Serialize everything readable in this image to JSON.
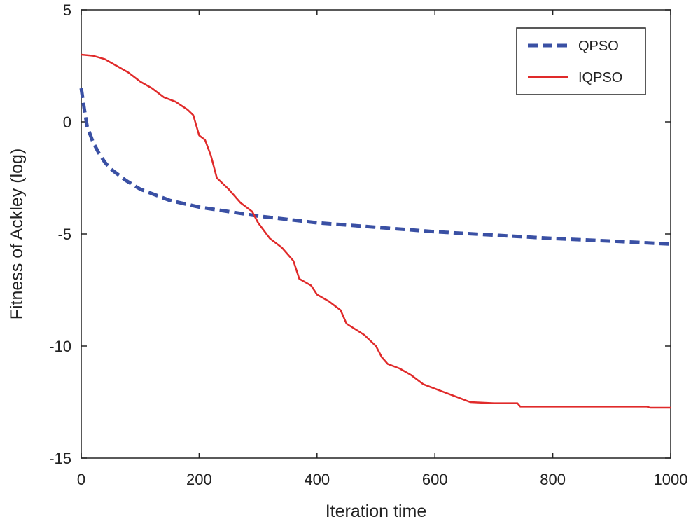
{
  "chart_data": {
    "type": "line",
    "title": "",
    "xlabel": "Iteration time",
    "ylabel": "Fitness of Ackley (log)",
    "xlim": [
      0,
      1000
    ],
    "ylim": [
      -15,
      5
    ],
    "x_ticks": [
      0,
      200,
      400,
      600,
      800,
      1000
    ],
    "y_ticks": [
      5,
      0,
      -5,
      -10,
      -15
    ],
    "x_tick_labels": [
      "0",
      "200",
      "400",
      "600",
      "800",
      "1000"
    ],
    "y_tick_labels": [
      "5",
      "0",
      "-5",
      "-10",
      "-15"
    ],
    "grid": false,
    "legend_position": "top-right",
    "series": [
      {
        "name": "QPSO",
        "color": "#3a50a4",
        "style": "dashed",
        "points": [
          [
            0,
            1.5
          ],
          [
            5,
            0.6
          ],
          [
            10,
            -0.2
          ],
          [
            20,
            -0.9
          ],
          [
            30,
            -1.4
          ],
          [
            40,
            -1.8
          ],
          [
            50,
            -2.1
          ],
          [
            75,
            -2.6
          ],
          [
            100,
            -3.0
          ],
          [
            150,
            -3.5
          ],
          [
            200,
            -3.8
          ],
          [
            250,
            -4.0
          ],
          [
            300,
            -4.2
          ],
          [
            350,
            -4.35
          ],
          [
            400,
            -4.5
          ],
          [
            450,
            -4.6
          ],
          [
            500,
            -4.7
          ],
          [
            600,
            -4.9
          ],
          [
            700,
            -5.05
          ],
          [
            800,
            -5.2
          ],
          [
            900,
            -5.32
          ],
          [
            1000,
            -5.45
          ]
        ]
      },
      {
        "name": "IQPSO",
        "color": "#e02a2a",
        "style": "solid",
        "points": [
          [
            0,
            3.0
          ],
          [
            20,
            2.95
          ],
          [
            40,
            2.8
          ],
          [
            60,
            2.5
          ],
          [
            80,
            2.2
          ],
          [
            100,
            1.8
          ],
          [
            120,
            1.5
          ],
          [
            140,
            1.1
          ],
          [
            160,
            0.9
          ],
          [
            180,
            0.55
          ],
          [
            190,
            0.3
          ],
          [
            200,
            -0.6
          ],
          [
            210,
            -0.8
          ],
          [
            220,
            -1.5
          ],
          [
            230,
            -2.5
          ],
          [
            250,
            -3.0
          ],
          [
            270,
            -3.6
          ],
          [
            290,
            -4.0
          ],
          [
            300,
            -4.5
          ],
          [
            320,
            -5.2
          ],
          [
            340,
            -5.6
          ],
          [
            360,
            -6.2
          ],
          [
            370,
            -7.0
          ],
          [
            390,
            -7.3
          ],
          [
            400,
            -7.7
          ],
          [
            420,
            -8.0
          ],
          [
            440,
            -8.4
          ],
          [
            450,
            -9.0
          ],
          [
            480,
            -9.5
          ],
          [
            500,
            -10.0
          ],
          [
            510,
            -10.5
          ],
          [
            520,
            -10.8
          ],
          [
            540,
            -11.0
          ],
          [
            560,
            -11.3
          ],
          [
            580,
            -11.7
          ],
          [
            600,
            -11.9
          ],
          [
            620,
            -12.1
          ],
          [
            640,
            -12.3
          ],
          [
            660,
            -12.5
          ],
          [
            700,
            -12.55
          ],
          [
            740,
            -12.55
          ],
          [
            745,
            -12.7
          ],
          [
            800,
            -12.7
          ],
          [
            900,
            -12.7
          ],
          [
            960,
            -12.7
          ],
          [
            965,
            -12.75
          ],
          [
            1000,
            -12.75
          ]
        ]
      }
    ]
  }
}
